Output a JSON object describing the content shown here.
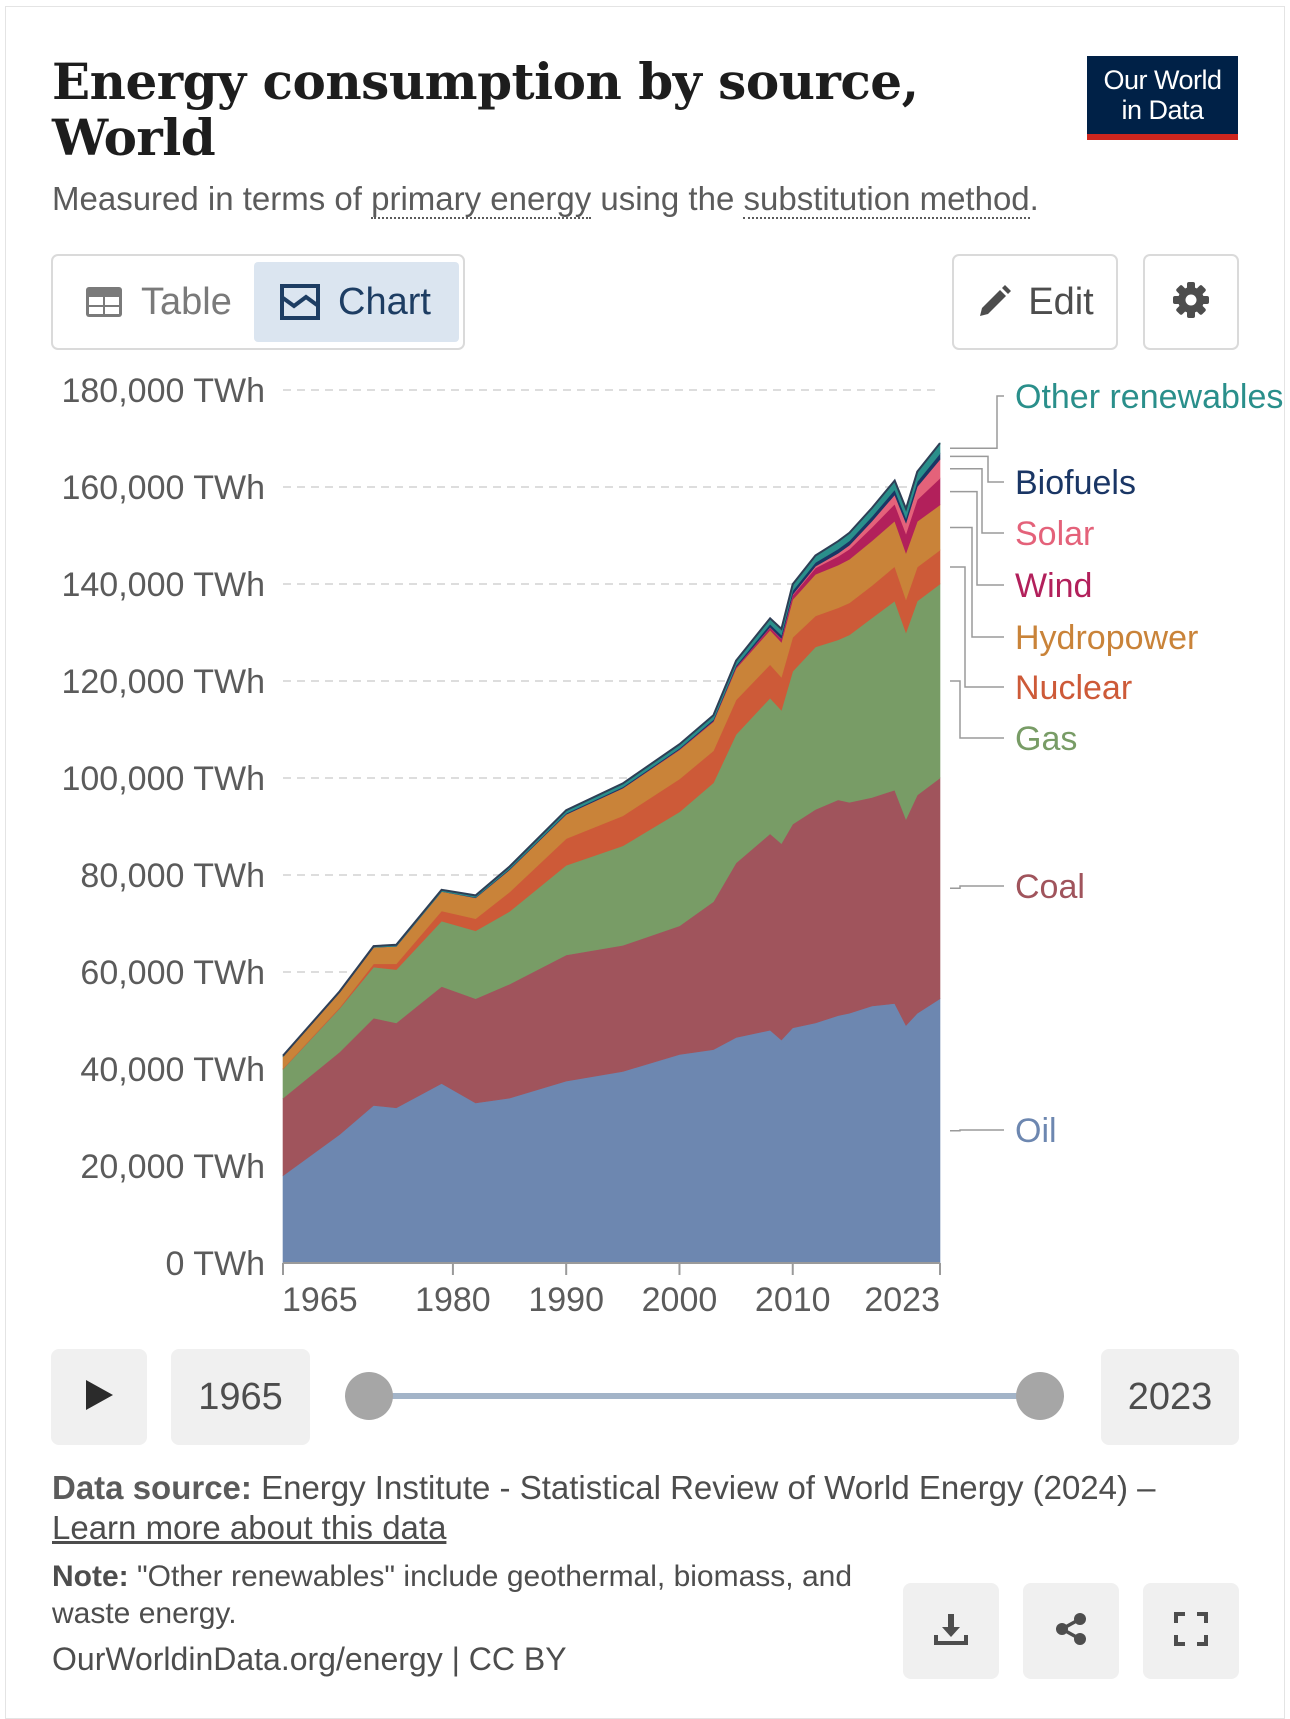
{
  "header": {
    "title": "Energy consumption by source, World",
    "subtitle_pre": "Measured in terms of ",
    "subtitle_link1": "primary energy",
    "subtitle_mid": " using the ",
    "subtitle_link2": "substitution method",
    "subtitle_post": ".",
    "logo_line1": "Our World",
    "logo_line2": "in Data"
  },
  "tabs": {
    "table_label": "Table",
    "chart_label": "Chart"
  },
  "toolbar": {
    "edit_label": "Edit"
  },
  "icons": {
    "table_tab": "table-icon",
    "chart_tab": "chart-icon",
    "edit": "pencil-icon",
    "settings": "gear-icon",
    "play": "play-icon",
    "download": "download-icon",
    "share": "share-icon",
    "fullscreen": "fullscreen-icon"
  },
  "timeline": {
    "start_year": "1965",
    "end_year": "2023"
  },
  "footer": {
    "source_label": "Data source:",
    "source_text": " Energy Institute - Statistical Review of World Energy (2024) –",
    "learn_more": "Learn more about this data",
    "note_label": "Note:",
    "note_text": " \"Other renewables\" include geothermal, biomass, and waste energy.",
    "license": "OurWorldinData.org/energy | CC BY"
  },
  "colors": {
    "Oil": "#6d87b0",
    "Coal": "#a0545c",
    "Gas": "#789c66",
    "Nuclear": "#cd5a38",
    "Hydropower": "#c98339",
    "Wind": "#b2205b",
    "Solar": "#e4627a",
    "Biofuels": "#1a3665",
    "Other renewables": "#2a8f8b"
  },
  "chart_data": {
    "type": "area",
    "stacked": true,
    "title": "Energy consumption by source, World",
    "unit": "TWh",
    "ylim": [
      0,
      180000
    ],
    "y_ticks": [
      {
        "value": 0,
        "label": "0 TWh"
      },
      {
        "value": 20000,
        "label": "20,000 TWh"
      },
      {
        "value": 40000,
        "label": "40,000 TWh"
      },
      {
        "value": 60000,
        "label": "60,000 TWh"
      },
      {
        "value": 80000,
        "label": "80,000 TWh"
      },
      {
        "value": 100000,
        "label": "100,000 TWh"
      },
      {
        "value": 120000,
        "label": "120,000 TWh"
      },
      {
        "value": 140000,
        "label": "140,000 TWh"
      },
      {
        "value": 160000,
        "label": "160,000 TWh"
      },
      {
        "value": 180000,
        "label": "180,000 TWh"
      }
    ],
    "x_ticks": [
      1965,
      1980,
      1990,
      2000,
      2010,
      2023
    ],
    "grid": "horizontal dashed",
    "legend_position": "right",
    "x": [
      1965,
      1970,
      1973,
      1975,
      1979,
      1982,
      1985,
      1990,
      1995,
      2000,
      2003,
      2005,
      2008,
      2009,
      2010,
      2012,
      2014,
      2015,
      2017,
      2019,
      2020,
      2021,
      2023
    ],
    "series": [
      {
        "name": "Oil",
        "values": [
          18000,
          26500,
          32500,
          32000,
          37000,
          33000,
          34000,
          37500,
          39500,
          43000,
          44000,
          46500,
          48000,
          46000,
          48500,
          49500,
          51000,
          51500,
          53000,
          53500,
          49000,
          51500,
          54500
        ]
      },
      {
        "name": "Coal",
        "values": [
          16000,
          17000,
          18000,
          17500,
          20000,
          21500,
          23500,
          26000,
          26000,
          26500,
          30500,
          36000,
          40500,
          40500,
          42000,
          44000,
          44500,
          43500,
          43000,
          44000,
          42500,
          45000,
          45500
        ]
      },
      {
        "name": "Gas",
        "values": [
          6000,
          9000,
          10500,
          11000,
          13500,
          14000,
          15000,
          18500,
          20500,
          23500,
          24500,
          26500,
          28000,
          27500,
          31500,
          33500,
          33000,
          34500,
          37000,
          39000,
          38500,
          40000,
          40000
        ]
      },
      {
        "name": "Nuclear",
        "values": [
          100,
          200,
          700,
          1200,
          2100,
          2500,
          4000,
          5500,
          6200,
          6800,
          6600,
          7100,
          6900,
          6800,
          7000,
          6400,
          6600,
          6600,
          6700,
          7100,
          6800,
          7000,
          7000
        ]
      },
      {
        "name": "Hydropower",
        "values": [
          2500,
          3100,
          3400,
          3600,
          4000,
          4300,
          4600,
          5000,
          5700,
          6000,
          6000,
          6500,
          7100,
          7200,
          7800,
          8600,
          8800,
          9000,
          9200,
          9400,
          9600,
          9400,
          9300
        ]
      },
      {
        "name": "Wind",
        "values": [
          0,
          0,
          0,
          0,
          0,
          0,
          0,
          10,
          20,
          80,
          160,
          260,
          550,
          720,
          900,
          1300,
          1800,
          2100,
          2800,
          3500,
          4000,
          4500,
          5500
        ]
      },
      {
        "name": "Solar",
        "values": [
          0,
          0,
          0,
          0,
          0,
          0,
          0,
          0,
          0,
          10,
          10,
          20,
          60,
          90,
          150,
          350,
          650,
          800,
          1300,
          1900,
          2200,
          2700,
          3900
        ]
      },
      {
        "name": "Biofuels",
        "values": [
          0,
          0,
          0,
          0,
          0,
          100,
          150,
          200,
          220,
          230,
          270,
          320,
          620,
          680,
          760,
          780,
          870,
          900,
          940,
          1050,
          960,
          1030,
          1200
        ]
      },
      {
        "name": "Other renewables",
        "values": [
          150,
          200,
          250,
          300,
          350,
          400,
          500,
          650,
          750,
          850,
          900,
          1000,
          1200,
          1250,
          1350,
          1450,
          1600,
          1650,
          1750,
          1900,
          1950,
          2050,
          2150
        ]
      }
    ],
    "legend_order": [
      "Other renewables",
      "Biofuels",
      "Solar",
      "Wind",
      "Hydropower",
      "Nuclear",
      "Gas",
      "Coal",
      "Oil"
    ]
  }
}
